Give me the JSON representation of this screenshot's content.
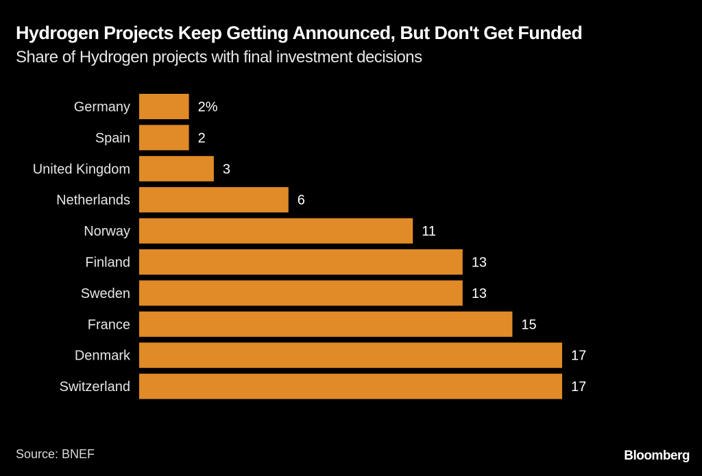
{
  "header": {
    "title": "Hydrogen Projects Keep Getting Announced, But Don't Get Funded",
    "subtitle": "Share of Hydrogen projects with final investment decisions"
  },
  "footer": {
    "source": "Source: BNEF",
    "brand": "Bloomberg"
  },
  "colors": {
    "background": "#000000",
    "bar": "#E08B27",
    "text": "#FFFFFF"
  },
  "chart_data": {
    "type": "bar",
    "orientation": "horizontal",
    "title": "Hydrogen Projects Keep Getting Announced, But Don't Get Funded",
    "subtitle": "Share of Hydrogen projects with final investment decisions",
    "xlabel": "",
    "ylabel": "",
    "unit": "%",
    "categories": [
      "Germany",
      "Spain",
      "United Kingdom",
      "Netherlands",
      "Norway",
      "Finland",
      "Sweden",
      "France",
      "Denmark",
      "Switzerland"
    ],
    "values": [
      2,
      2,
      3,
      6,
      11,
      13,
      13,
      15,
      17,
      17
    ],
    "value_labels": [
      "2%",
      "2",
      "3",
      "6",
      "11",
      "13",
      "13",
      "15",
      "17",
      "17"
    ],
    "xlim": [
      0,
      17
    ],
    "grid": false,
    "legend": "none",
    "source": "Source: BNEF"
  }
}
